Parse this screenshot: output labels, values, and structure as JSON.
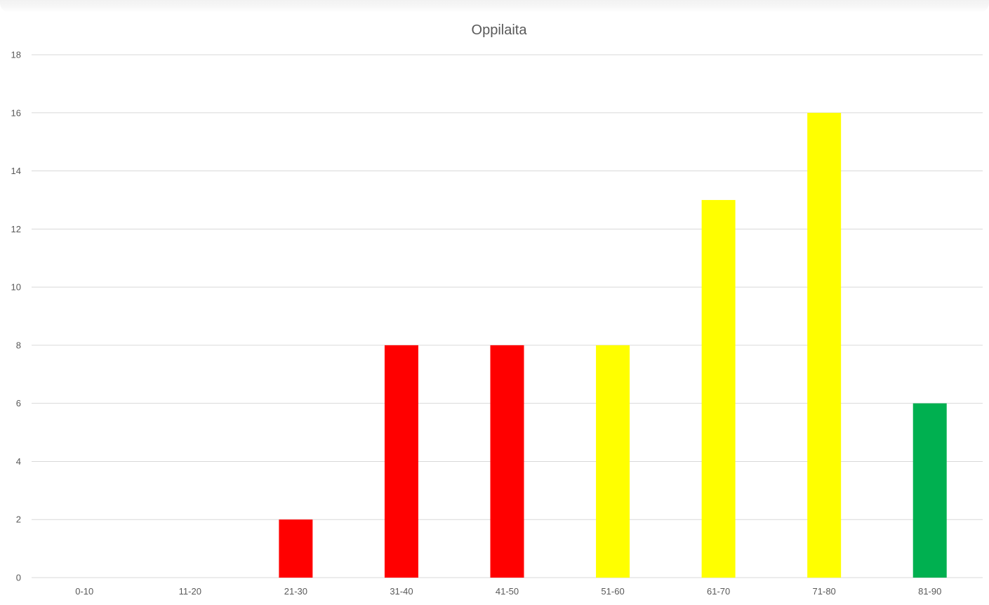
{
  "chart_data": {
    "type": "bar",
    "title": "Oppilaita",
    "xlabel": "",
    "ylabel": "",
    "categories": [
      "0-10",
      "11-20",
      "21-30",
      "31-40",
      "41-50",
      "51-60",
      "61-70",
      "71-80",
      "81-90"
    ],
    "values": [
      0,
      0,
      2,
      8,
      8,
      8,
      13,
      16,
      6
    ],
    "bar_colors": [
      "#ff0000",
      "#ff0000",
      "#ff0000",
      "#ff0000",
      "#ff0000",
      "#ffff00",
      "#ffff00",
      "#ffff00",
      "#00b050"
    ],
    "ylim": [
      0,
      18
    ],
    "y_ticks": [
      0,
      2,
      4,
      6,
      8,
      10,
      12,
      14,
      16,
      18
    ],
    "grid": true,
    "legend": false
  },
  "colors": {
    "red": "#ff0000",
    "yellow": "#ffff00",
    "green": "#00b050",
    "gridline": "#d9d9d9",
    "text": "#595959"
  }
}
